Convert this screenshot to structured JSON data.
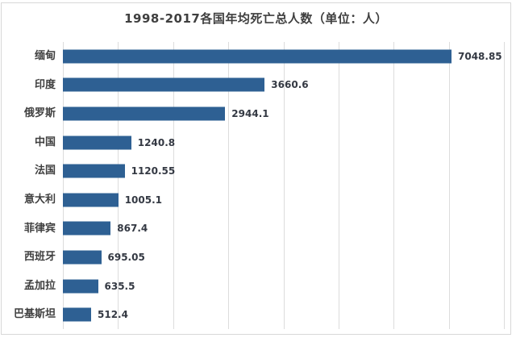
{
  "title": "1998-2017各国年均死亡总人数（单位：人）",
  "chart_data": {
    "type": "bar",
    "orientation": "horizontal",
    "title": "1998-2017各国年均死亡总人数（单位：人）",
    "categories": [
      "缅甸",
      "印度",
      "俄罗斯",
      "中国",
      "法国",
      "意大利",
      "菲律宾",
      "西班牙",
      "孟加拉",
      "巴基斯坦"
    ],
    "values": [
      7048.85,
      3660.6,
      2944.1,
      1240.8,
      1120.55,
      1005.1,
      867.4,
      695.05,
      635.5,
      512.4
    ],
    "value_labels": [
      "7048.85",
      "3660.6",
      "2944.1",
      "1240.8",
      "1120.55",
      "1005.1",
      "867.4",
      "695.05",
      "635.5",
      "512.4"
    ],
    "xlabel": "",
    "ylabel": "",
    "xlim": [
      0,
      8000
    ],
    "grid_step": 1000,
    "grid": true,
    "legend": false,
    "data_labels": true,
    "colors": {
      "bar": "#2e6093",
      "gridline": "#dcdcdc",
      "border": "#d8d8d8",
      "text": "#3f3f3f"
    }
  }
}
